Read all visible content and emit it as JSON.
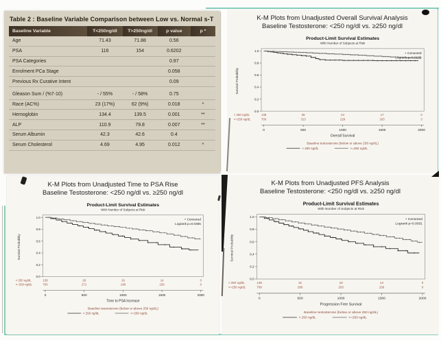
{
  "colors": {
    "teal_border": "#86cdb9",
    "table_page_bg": "#d8d2c3",
    "table_header_bg": "#4a3c2d",
    "risk_text": "#9a4f3c",
    "footer_text": "#8a4a38",
    "curve_low": "#2e2e2e",
    "curve_high": "#5f5f5f"
  },
  "table_panel": {
    "title": "Table 2 : Baseline Variable Comparison between Low vs. Normal s-T",
    "columns": [
      "Baseline Variable",
      "T<250ng/dl",
      "T>250ng/dl",
      "p value",
      "p *"
    ],
    "rows": [
      {
        "name": "Age",
        "low": "71.43",
        "high": "71.88",
        "p": "0.56",
        "sig": ""
      },
      {
        "name": "PSA",
        "low": "116",
        "high": "154",
        "p": "0.6202",
        "sig": ""
      },
      {
        "name": "PSA Categories",
        "low": "",
        "high": "",
        "p": "0.97",
        "sig": ""
      },
      {
        "name": "Enrolment PCa Stage",
        "low": "",
        "high": "",
        "p": "0.058",
        "sig": ""
      },
      {
        "name": "Previous Rx Curative Intent",
        "low": "",
        "high": "",
        "p": "0.09",
        "sig": "",
        "gap_after": true
      },
      {
        "name": "Gleason Sum / (%7-10)",
        "low": "- / 55%",
        "high": "- / 58%",
        "p": "0.75",
        "sig": ""
      },
      {
        "name": "Race (AC%)",
        "low": "23 (17%)",
        "high": "62 (9%)",
        "p": "0.018",
        "sig": "*"
      },
      {
        "name": "Hemoglobin",
        "low": "134.4",
        "high": "139.5",
        "p": "0.001",
        "sig": "**"
      },
      {
        "name": "ALP",
        "low": "110.9",
        "high": "79.8",
        "p": "0.007",
        "sig": "**"
      },
      {
        "name": "Serum Albumin",
        "low": "42.3",
        "high": "42.6",
        "p": "0.4",
        "sig": ""
      },
      {
        "name": "Serum Cholesterol",
        "low": "4.69",
        "high": "4.95",
        "p": "0.012",
        "sig": "*"
      }
    ]
  },
  "chart_data": [
    {
      "type": "line",
      "kind": "kaplan-meier",
      "page_title_line1": "K-M Plots from Unadjusted Overall Survival Analysis",
      "page_title_line2": "Baseline Testosterone: <250 ng/dl vs. ≥250 ng/dl",
      "title": "Product-Limit Survival Estimates",
      "subtitle": "With Number of Subjects at Risk",
      "legend_censored": "+ Censored",
      "logrank": "Logrank p=0.0135",
      "ylabel": "Survival Probability",
      "xlabel": "Overall Survival",
      "xlim": [
        0,
        2000
      ],
      "ylim": [
        0.0,
        1.0
      ],
      "xticks": [
        0,
        500,
        1000,
        1500,
        2000
      ],
      "yticks": [
        1.0,
        0.8,
        0.6,
        0.4,
        0.2,
        0.0
      ],
      "footer_legend_title": "Baseline testosterone (below or above 250 ng/dL)",
      "series": [
        {
          "name": "< 250 ng/dL",
          "color_key": "curve_low",
          "censor_every": 60,
          "end_x": 1960,
          "at_risk": [
            "138",
            "36",
            "24",
            "17",
            "0"
          ],
          "steps": [
            [
              0,
              1.0
            ],
            [
              50,
              0.993
            ],
            [
              90,
              0.985
            ],
            [
              130,
              0.978
            ],
            [
              170,
              0.97
            ],
            [
              210,
              0.963
            ],
            [
              250,
              0.955
            ],
            [
              300,
              0.948
            ],
            [
              360,
              0.94
            ],
            [
              420,
              0.932
            ],
            [
              480,
              0.925
            ],
            [
              540,
              0.917
            ],
            [
              600,
              0.895
            ],
            [
              660,
              0.875
            ],
            [
              700,
              0.858
            ],
            [
              780,
              0.85
            ],
            [
              1000,
              0.845
            ],
            [
              1400,
              0.84
            ]
          ]
        },
        {
          "name": ">=250 ng/dL",
          "color_key": "curve_high",
          "censor_every": 22,
          "end_x": 2000,
          "at_risk": [
            "700",
            "313",
            "229",
            "183",
            "3"
          ],
          "steps": [
            [
              0,
              1.0
            ],
            [
              60,
              0.997
            ],
            [
              140,
              0.993
            ],
            [
              220,
              0.989
            ],
            [
              300,
              0.985
            ],
            [
              380,
              0.98
            ],
            [
              460,
              0.976
            ],
            [
              540,
              0.972
            ],
            [
              620,
              0.967
            ],
            [
              700,
              0.962
            ],
            [
              800,
              0.956
            ],
            [
              900,
              0.95
            ],
            [
              1000,
              0.944
            ],
            [
              1100,
              0.937
            ],
            [
              1200,
              0.93
            ],
            [
              1300,
              0.923
            ],
            [
              1400,
              0.916
            ],
            [
              1500,
              0.908
            ],
            [
              1600,
              0.902
            ],
            [
              1700,
              0.896
            ],
            [
              1800,
              0.89
            ]
          ]
        }
      ]
    },
    {
      "type": "line",
      "kind": "kaplan-meier",
      "page_title_line1": "K-M Plots from Unadjusted Time to PSA Rise",
      "page_title_line2": "Baseline Testosterone: <250 ng/dl vs. ≥250 ng/dl",
      "title": "Product-Limit Survival Estimates",
      "subtitle": "With Number of Subjects at Risk",
      "legend_censored": "+ Censored",
      "logrank": "Logrank p=0.0365",
      "ylabel": "Survival Probability",
      "xlabel": "Time to PSA Increase",
      "xlim": [
        0,
        2000
      ],
      "ylim": [
        0.0,
        1.0
      ],
      "xticks": [
        0,
        500,
        1000,
        1500,
        2000
      ],
      "yticks": [
        1.0,
        0.8,
        0.6,
        0.4,
        0.2,
        0.0
      ],
      "footer_legend_title": "Baseline testosterone (below or above 250 ng/dL)",
      "series": [
        {
          "name": "< 250 ng/dL",
          "color_key": "curve_low",
          "censor_every": 110,
          "end_x": 1970,
          "at_risk": [
            "138",
            "28",
            "19",
            "14",
            "0"
          ],
          "steps": [
            [
              0,
              1.0
            ],
            [
              70,
              0.98
            ],
            [
              140,
              0.955
            ],
            [
              210,
              0.93
            ],
            [
              280,
              0.905
            ],
            [
              350,
              0.88
            ],
            [
              420,
              0.857
            ],
            [
              490,
              0.833
            ],
            [
              560,
              0.81
            ],
            [
              630,
              0.785
            ],
            [
              700,
              0.76
            ],
            [
              780,
              0.735
            ],
            [
              860,
              0.71
            ],
            [
              940,
              0.685
            ],
            [
              1020,
              0.66
            ],
            [
              1100,
              0.635
            ],
            [
              1200,
              0.61
            ],
            [
              1320,
              0.575
            ],
            [
              1450,
              0.54
            ],
            [
              1600,
              0.5
            ],
            [
              1750,
              0.47
            ],
            [
              1850,
              0.45
            ]
          ]
        },
        {
          "name": ">=250 ng/dL",
          "color_key": "curve_high",
          "censor_every": 45,
          "end_x": 2000,
          "at_risk": [
            "700",
            "271",
            "198",
            "159",
            "0"
          ],
          "steps": [
            [
              0,
              1.0
            ],
            [
              80,
              0.99
            ],
            [
              160,
              0.975
            ],
            [
              240,
              0.96
            ],
            [
              320,
              0.945
            ],
            [
              400,
              0.93
            ],
            [
              480,
              0.915
            ],
            [
              560,
              0.9
            ],
            [
              640,
              0.886
            ],
            [
              720,
              0.872
            ],
            [
              800,
              0.858
            ],
            [
              880,
              0.845
            ],
            [
              960,
              0.832
            ],
            [
              1040,
              0.818
            ],
            [
              1120,
              0.805
            ],
            [
              1200,
              0.79
            ],
            [
              1290,
              0.775
            ],
            [
              1380,
              0.758
            ],
            [
              1470,
              0.74
            ],
            [
              1560,
              0.722
            ],
            [
              1650,
              0.7
            ],
            [
              1740,
              0.678
            ],
            [
              1830,
              0.655
            ],
            [
              1920,
              0.64
            ]
          ]
        }
      ]
    },
    {
      "type": "line",
      "kind": "kaplan-meier",
      "page_title_line1": "K-M Plots from Unadjusted PFS Analysis",
      "page_title_line2": "Baseline Testosterone: <250 ng/dl vs. ≥250 ng/dl",
      "title": "Product-Limit Survival Estimates",
      "subtitle": "With Number of Subjects at Risk",
      "legend_censored": "+ Censored",
      "logrank": "Logrank p=0.0031",
      "ylabel": "Survival Probability",
      "xlabel": "Progression Free Survival",
      "xlim": [
        0,
        2000
      ],
      "ylim": [
        0.0,
        1.0
      ],
      "xticks": [
        0,
        500,
        1000,
        1500,
        2000
      ],
      "yticks": [
        1.0,
        0.8,
        0.6,
        0.4,
        0.2,
        0.0
      ],
      "footer_legend_title": "Baseline testosterone (below or above 250 ng/dL)",
      "series": [
        {
          "name": "< 250 ng/dL",
          "color_key": "curve_low",
          "censor_every": 100,
          "end_x": 1960,
          "at_risk": [
            "138",
            "31",
            "19",
            "14",
            "0"
          ],
          "steps": [
            [
              0,
              1.0
            ],
            [
              60,
              0.975
            ],
            [
              120,
              0.95
            ],
            [
              180,
              0.925
            ],
            [
              240,
              0.9
            ],
            [
              300,
              0.876
            ],
            [
              360,
              0.853
            ],
            [
              420,
              0.83
            ],
            [
              480,
              0.807
            ],
            [
              540,
              0.785
            ],
            [
              600,
              0.762
            ],
            [
              660,
              0.74
            ],
            [
              730,
              0.716
            ],
            [
              800,
              0.692
            ],
            [
              870,
              0.668
            ],
            [
              940,
              0.645
            ],
            [
              1010,
              0.622
            ],
            [
              1090,
              0.6
            ],
            [
              1180,
              0.575
            ],
            [
              1280,
              0.55
            ],
            [
              1400,
              0.52
            ],
            [
              1550,
              0.49
            ],
            [
              1700,
              0.455
            ],
            [
              1820,
              0.42
            ]
          ]
        },
        {
          "name": ">=250 ng/dL",
          "color_key": "curve_high",
          "censor_every": 40,
          "end_x": 2000,
          "at_risk": [
            "700",
            "280",
            "203",
            "156",
            "0"
          ],
          "steps": [
            [
              0,
              1.0
            ],
            [
              80,
              0.988
            ],
            [
              160,
              0.972
            ],
            [
              240,
              0.955
            ],
            [
              320,
              0.938
            ],
            [
              400,
              0.92
            ],
            [
              480,
              0.903
            ],
            [
              560,
              0.886
            ],
            [
              640,
              0.87
            ],
            [
              720,
              0.853
            ],
            [
              800,
              0.836
            ],
            [
              880,
              0.82
            ],
            [
              960,
              0.804
            ],
            [
              1040,
              0.788
            ],
            [
              1120,
              0.772
            ],
            [
              1200,
              0.755
            ],
            [
              1290,
              0.737
            ],
            [
              1380,
              0.718
            ],
            [
              1470,
              0.7
            ],
            [
              1560,
              0.68
            ],
            [
              1660,
              0.658
            ],
            [
              1760,
              0.635
            ],
            [
              1860,
              0.61
            ],
            [
              1940,
              0.59
            ]
          ]
        }
      ]
    }
  ]
}
